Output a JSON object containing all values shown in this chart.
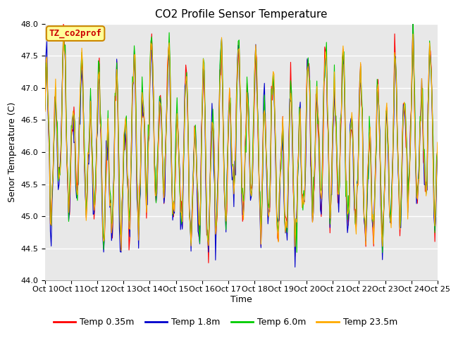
{
  "title": "CO2 Profile Sensor Temperature",
  "ylabel": "Senor Temperature (C)",
  "xlabel": "Time",
  "ylim": [
    44.0,
    48.0
  ],
  "yticks": [
    44.0,
    44.5,
    45.0,
    45.5,
    46.0,
    46.5,
    47.0,
    47.5,
    48.0
  ],
  "xtick_labels": [
    "Oct 10",
    "Oct 11",
    "Oct 12",
    "Oct 13",
    "Oct 14",
    "Oct 15",
    "Oct 16",
    "Oct 17",
    "Oct 18",
    "Oct 19",
    "Oct 20",
    "Oct 21",
    "Oct 22",
    "Oct 23",
    "Oct 24",
    "Oct 25"
  ],
  "colors": {
    "temp_035": "#ff0000",
    "temp_18": "#0000cc",
    "temp_60": "#00cc00",
    "temp_235": "#ffaa00"
  },
  "legend_labels": [
    "Temp 0.35m",
    "Temp 1.8m",
    "Temp 6.0m",
    "Temp 23.5m"
  ],
  "legend_box_label": "TZ_co2prof",
  "legend_box_color": "#ffff99",
  "legend_box_edge": "#cc8800",
  "bg_color": "#e8e8e8",
  "title_fontsize": 11,
  "axis_label_fontsize": 9,
  "tick_fontsize": 8
}
